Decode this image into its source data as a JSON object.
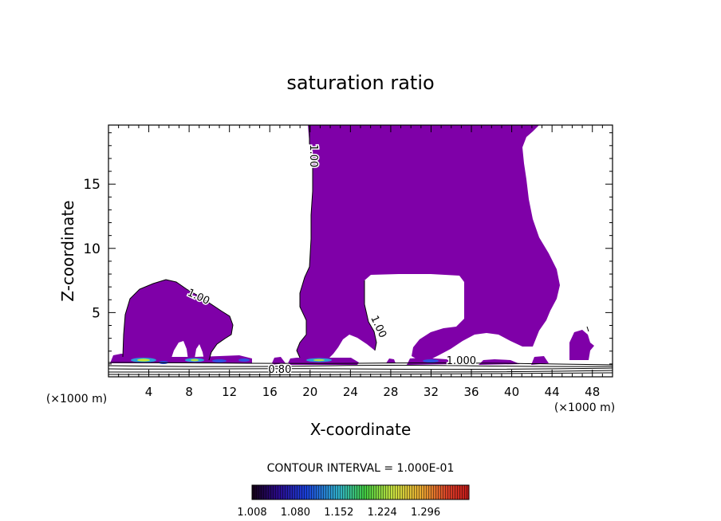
{
  "chart_data": {
    "type": "contour",
    "title": "saturation ratio",
    "xlabel": "X-coordinate",
    "ylabel": "Z-coordinate",
    "x_unit": "(×1000 m)",
    "y_unit": "(×1000 m)",
    "xlim": [
      0,
      50
    ],
    "ylim": [
      0,
      19.6
    ],
    "x_ticks": [
      4,
      8,
      12,
      16,
      20,
      24,
      28,
      32,
      36,
      40,
      44,
      48
    ],
    "y_ticks": [
      5,
      10,
      15
    ],
    "contour_labels": [
      {
        "text": "1.00",
        "x": 20,
        "y": 17.2,
        "angle": 90
      },
      {
        "text": "1.00",
        "x": 8.8,
        "y": 6.0,
        "angle": 25
      },
      {
        "text": "1.00",
        "x": 26.5,
        "y": 3.8,
        "angle": 65
      },
      {
        "text": "1.000",
        "x": 35.0,
        "y": 1.0,
        "angle": 0
      },
      {
        "text": "0.80",
        "x": 17.0,
        "y": 0.3,
        "angle": 0
      }
    ],
    "contour_interval_text": "CONTOUR INTERVAL = 1.000E-01",
    "colorbar": {
      "labels": [
        "1.008",
        "1.080",
        "1.152",
        "1.224",
        "1.296"
      ],
      "min": 1.008,
      "max": 1.368
    },
    "colors": {
      "fill": "#7f00a8",
      "background": "#ffffff",
      "contour_line": "#000000"
    }
  }
}
